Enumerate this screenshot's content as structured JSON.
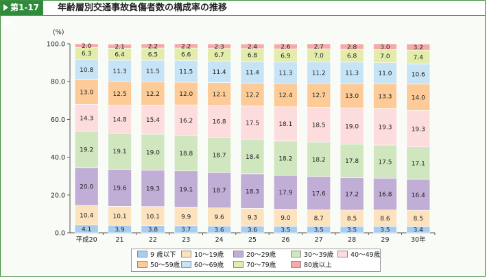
{
  "header": {
    "tag_label": "第1-17図",
    "title": "年齢層別交通事故負傷者数の構成率の推移"
  },
  "chart_data": {
    "type": "bar",
    "stacked": true,
    "y_unit_label": "(%)",
    "ylim": [
      0,
      100
    ],
    "y_ticks": [
      "0.0",
      "20.0",
      "40.0",
      "60.0",
      "80.0",
      "100.0"
    ],
    "categories": [
      "平成20",
      "21",
      "22",
      "23",
      "24",
      "25",
      "26",
      "27",
      "28",
      "29",
      "30年"
    ],
    "series": [
      {
        "name": "9 歳以下",
        "color": "#a9cdee",
        "values": [
          4.1,
          3.9,
          3.8,
          3.7,
          3.6,
          3.6,
          3.5,
          3.5,
          3.5,
          3.5,
          3.4
        ]
      },
      {
        "name": "10～19歳",
        "color": "#fce2bd",
        "values": [
          10.4,
          10.1,
          10.1,
          9.9,
          9.6,
          9.3,
          9.0,
          8.7,
          8.5,
          8.6,
          8.5
        ]
      },
      {
        "name": "20～29歳",
        "color": "#c1aed6",
        "values": [
          20.0,
          19.6,
          19.3,
          19.1,
          18.7,
          18.3,
          17.9,
          17.6,
          17.2,
          16.8,
          16.4
        ]
      },
      {
        "name": "30～39歳",
        "color": "#cfe6bf",
        "values": [
          19.2,
          19.1,
          19.0,
          18.8,
          18.7,
          18.4,
          18.2,
          18.2,
          17.8,
          17.5,
          17.1
        ]
      },
      {
        "name": "40～49歳",
        "color": "#fcdcdd",
        "values": [
          14.3,
          14.8,
          15.4,
          16.2,
          16.8,
          17.5,
          18.1,
          18.5,
          19.0,
          19.3,
          19.3
        ]
      },
      {
        "name": "50～59歳",
        "color": "#fccb97",
        "values": [
          13.0,
          12.5,
          12.2,
          12.0,
          12.1,
          12.2,
          12.4,
          12.7,
          13.0,
          13.3,
          14.0
        ]
      },
      {
        "name": "60～69歳",
        "color": "#c6e4f6",
        "values": [
          10.8,
          11.3,
          11.5,
          11.5,
          11.4,
          11.4,
          11.3,
          11.2,
          11.3,
          11.0,
          10.6
        ]
      },
      {
        "name": "70～79歳",
        "color": "#e3ecaa",
        "values": [
          6.3,
          6.4,
          6.5,
          6.6,
          6.7,
          6.8,
          6.9,
          7.0,
          6.8,
          7.0,
          7.4
        ]
      },
      {
        "name": "80歳以上",
        "color": "#f7a8a8",
        "values": [
          2.0,
          2.1,
          2.2,
          2.2,
          2.3,
          2.4,
          2.6,
          2.7,
          2.8,
          3.0,
          3.2
        ]
      }
    ],
    "legend_position": "bottom",
    "grid": false
  }
}
